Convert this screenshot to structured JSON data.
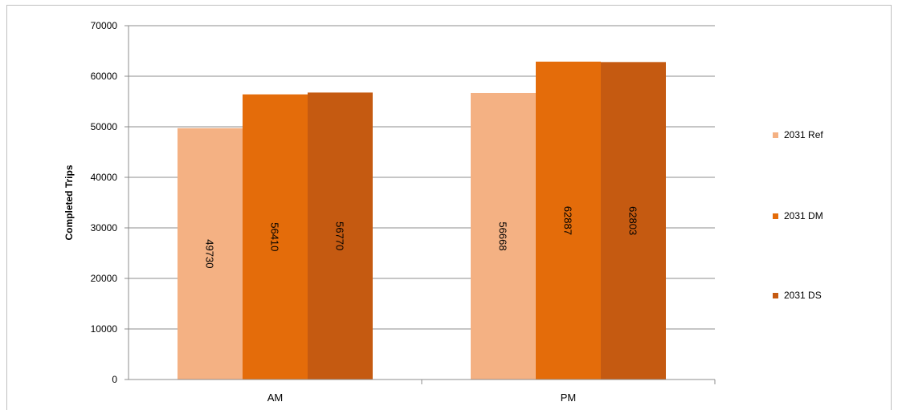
{
  "chart_data": {
    "type": "bar",
    "title": "",
    "xlabel": "",
    "ylabel": "Completed Trips",
    "categories": [
      "AM",
      "PM"
    ],
    "series": [
      {
        "name": "2031 Ref",
        "values": [
          49730,
          56668
        ],
        "color": "#f4b183"
      },
      {
        "name": "2031 DM",
        "values": [
          56410,
          62887
        ],
        "color": "#e46c0a"
      },
      {
        "name": "2031 DS",
        "values": [
          56770,
          62803
        ],
        "color": "#c55a11"
      }
    ],
    "ylim": [
      0,
      70000
    ],
    "yticks": [
      "0",
      "10000",
      "20000",
      "30000",
      "40000",
      "50000",
      "60000",
      "70000"
    ],
    "grid": true,
    "legend_position": "right",
    "data_labels": true,
    "data_label_rotation": "vertical"
  }
}
